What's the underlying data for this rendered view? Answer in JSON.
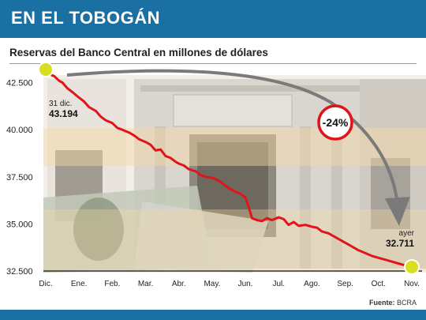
{
  "header": {
    "title": "EN EL TOBOGÁN"
  },
  "colors": {
    "header": "#1a6fa3",
    "line": "#e0141b",
    "marker": "#d6e020",
    "badge_border": "#e0141b"
  },
  "chart_data": {
    "type": "line",
    "title": "Reservas del Banco Central en millones de dólares",
    "categories": [
      "Dic.",
      "Ene.",
      "Feb.",
      "Mar.",
      "Abr.",
      "May.",
      "Jun.",
      "Jul.",
      "Ago.",
      "Sep.",
      "Oct.",
      "Nov."
    ],
    "y_ticks": [
      "42.500",
      "40.000",
      "37.500",
      "35.000",
      "32.500"
    ],
    "ylim": [
      32500,
      42900
    ],
    "grid": false,
    "series": [
      {
        "x": [
          0,
          0.1,
          0.25,
          0.4,
          0.5,
          0.65,
          0.8,
          1.0,
          1.15,
          1.3,
          1.5,
          1.65,
          1.8,
          2.0,
          2.15,
          2.3,
          2.5,
          2.65,
          2.8,
          3.0,
          3.15,
          3.3,
          3.45,
          3.6,
          3.75,
          3.9,
          4.0,
          4.15,
          4.3,
          4.5,
          4.65,
          4.8,
          5.0,
          5.2,
          5.35,
          5.5,
          5.7,
          5.85,
          6.0,
          6.1,
          6.2,
          6.35,
          6.5,
          6.65,
          6.8,
          7.0,
          7.15,
          7.3,
          7.45,
          7.6,
          7.8,
          8.0,
          8.15,
          8.3,
          8.5,
          8.65,
          8.8,
          9.0,
          9.2,
          9.4,
          9.6,
          9.8,
          10.0,
          10.2,
          10.4,
          10.6,
          10.8,
          11.0
        ],
        "values": [
          43194,
          42950,
          42850,
          42600,
          42500,
          42200,
          42000,
          41700,
          41500,
          41200,
          41000,
          40700,
          40500,
          40350,
          40100,
          40000,
          39850,
          39700,
          39500,
          39350,
          39200,
          38900,
          38950,
          38600,
          38500,
          38300,
          38200,
          38100,
          37900,
          37800,
          37600,
          37500,
          37450,
          37300,
          37100,
          36900,
          36700,
          36600,
          36400,
          35900,
          35300,
          35200,
          35150,
          35300,
          35200,
          35350,
          35250,
          34950,
          35100,
          34900,
          34950,
          34850,
          34800,
          34600,
          34500,
          34350,
          34200,
          34000,
          33800,
          33600,
          33450,
          33300,
          33200,
          33100,
          33000,
          32900,
          32800,
          32711
        ]
      }
    ],
    "annotations": {
      "start_label": "31 dic.",
      "start_value": "43.194",
      "end_label": "ayer",
      "end_value": "32.711",
      "change": "-24%"
    },
    "source_label": "Fuente:",
    "source_value": "BCRA"
  }
}
